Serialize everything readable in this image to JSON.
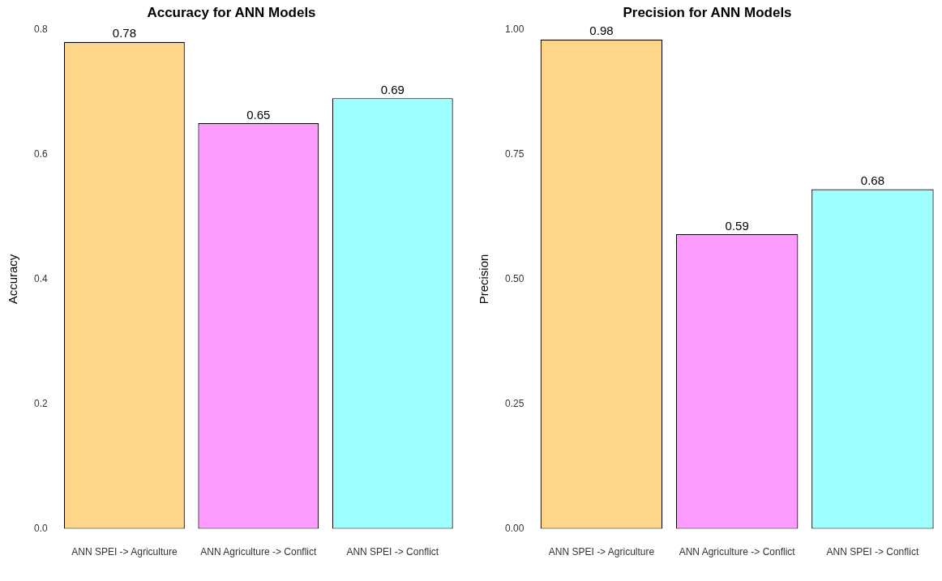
{
  "chart_data": [
    {
      "type": "bar",
      "title": "Accuracy for ANN Models",
      "ylabel": "Accuracy",
      "categories": [
        "ANN SPEI -> Agriculture",
        "ANN Agriculture -> Conflict",
        "ANN SPEI -> Conflict"
      ],
      "values": [
        0.78,
        0.65,
        0.69
      ],
      "colors": [
        "#fdd68a",
        "#fe9bfe",
        "#9ffffe"
      ],
      "ylim": [
        0,
        0.8
      ],
      "yticks": [
        {
          "value": 0,
          "label": "0.0"
        },
        {
          "value": 0.2,
          "label": "0.2"
        },
        {
          "value": 0.4,
          "label": "0.4"
        },
        {
          "value": 0.6,
          "label": "0.6"
        },
        {
          "value": 0.8,
          "label": "0.8"
        }
      ],
      "grid": false,
      "legend": false,
      "data_labels": true
    },
    {
      "type": "bar",
      "title": "Precision for ANN Models",
      "ylabel": "Precision",
      "categories": [
        "ANN SPEI -> Agriculture",
        "ANN Agriculture -> Conflict",
        "ANN SPEI -> Conflict"
      ],
      "values": [
        0.98,
        0.59,
        0.68
      ],
      "colors": [
        "#fdd68a",
        "#fe9bfe",
        "#9ffffe"
      ],
      "ylim": [
        0,
        1.0
      ],
      "yticks": [
        {
          "value": 0,
          "label": "0.00"
        },
        {
          "value": 0.25,
          "label": "0.25"
        },
        {
          "value": 0.5,
          "label": "0.50"
        },
        {
          "value": 0.75,
          "label": "0.75"
        },
        {
          "value": 1.0,
          "label": "1.00"
        }
      ],
      "grid": false,
      "legend": false,
      "data_labels": true
    }
  ]
}
